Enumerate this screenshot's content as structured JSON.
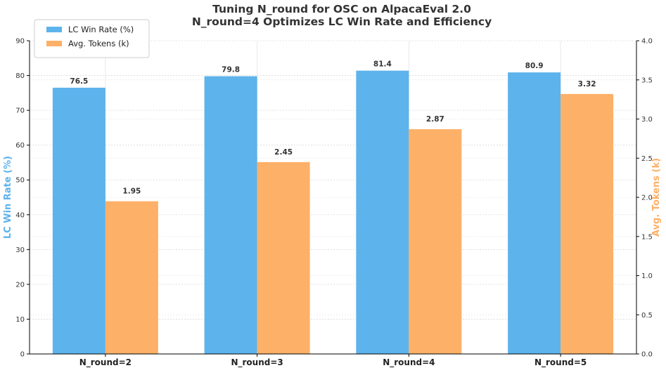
{
  "chart_data": {
    "type": "bar",
    "title": "Tuning N_round for OSC on AlpacaEval 2.0",
    "subtitle": "N_round=4 Optimizes LC Win Rate and Efficiency",
    "categories": [
      "N_round=2",
      "N_round=3",
      "N_round=4",
      "N_round=5"
    ],
    "series": [
      {
        "name": "LC Win Rate (%)",
        "axis": "left",
        "color": "#5DB3EB",
        "values": [
          76.5,
          79.8,
          81.4,
          80.9
        ],
        "labels": [
          "76.5",
          "79.8",
          "81.4",
          "80.9"
        ]
      },
      {
        "name": "Avg. Tokens (k)",
        "axis": "right",
        "color": "#FDB068",
        "values": [
          1.95,
          2.45,
          2.87,
          3.32
        ],
        "labels": [
          "1.95",
          "2.45",
          "2.87",
          "3.32"
        ]
      }
    ],
    "ylabel": "LC Win Rate (%)",
    "ylabel_color": "#5DB3EB",
    "ylim": [
      0,
      90
    ],
    "yticks": [
      "0",
      "10",
      "20",
      "30",
      "40",
      "50",
      "60",
      "70",
      "80",
      "90"
    ],
    "y2label": "Avg. Tokens (k)",
    "y2label_color": "#FDB068",
    "y2lim": [
      0,
      4.0
    ],
    "y2ticks": [
      "0.0",
      "0.5",
      "1.0",
      "1.5",
      "2.0",
      "2.5",
      "3.0",
      "3.5",
      "4.0"
    ],
    "grid": true,
    "legend_position": "top-left"
  }
}
